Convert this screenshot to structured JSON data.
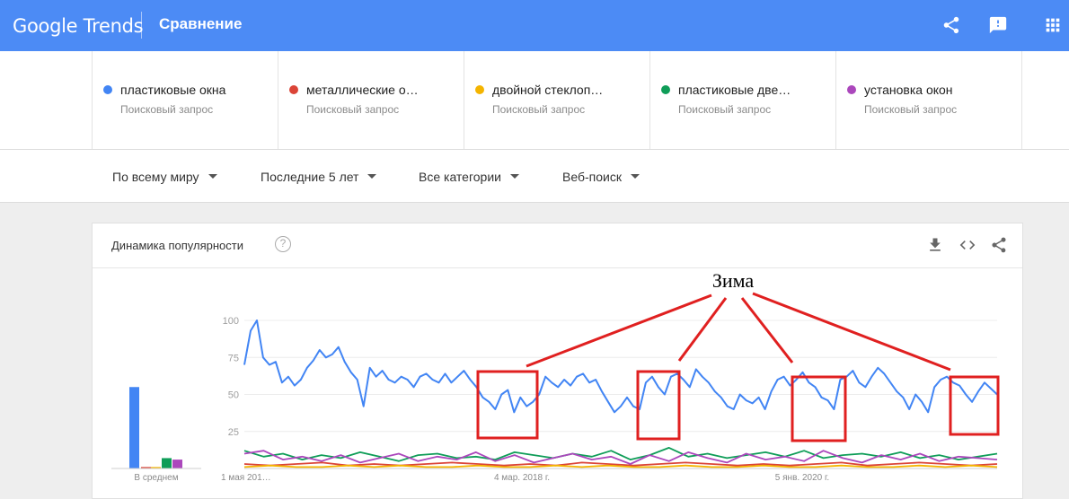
{
  "app": {
    "logo": "Google Trends",
    "title": "Сравнение"
  },
  "colors": {
    "accent": "#4c8bf5",
    "blue": "#4285f4",
    "red": "#db4437",
    "yellow": "#f4b400",
    "green": "#0f9d58",
    "purple": "#ab47bc",
    "annotation": "#e02020"
  },
  "terms": [
    {
      "name": "пластиковые окна",
      "type": "Поисковый запрос",
      "color": "#4285f4"
    },
    {
      "name": "металлические о…",
      "type": "Поисковый запрос",
      "color": "#db4437"
    },
    {
      "name": "двойной стеклоп…",
      "type": "Поисковый запрос",
      "color": "#f4b400"
    },
    {
      "name": "пластиковые две…",
      "type": "Поисковый запрос",
      "color": "#0f9d58"
    },
    {
      "name": "установка окон",
      "type": "Поисковый запрос",
      "color": "#ab47bc"
    }
  ],
  "filters": {
    "region": "По всему миру",
    "period": "Последние 5 лет",
    "category": "Все категории",
    "search_type": "Веб-поиск"
  },
  "card": {
    "title": "Динамика популярности",
    "help": "?"
  },
  "annotation": {
    "label": "Зима"
  },
  "chart_data": {
    "type": "line",
    "y_ticks": [
      "100",
      "75",
      "50",
      "25"
    ],
    "ylim": [
      0,
      100
    ],
    "x_ticks": [
      "1 мая 201…",
      "4 мар. 2018 г.",
      "5 янв. 2020 г."
    ],
    "average_label": "В среднем",
    "averages": [
      {
        "color": "#4285f4",
        "value": 55
      },
      {
        "color": "#db4437",
        "value": 1
      },
      {
        "color": "#f4b400",
        "value": 1
      },
      {
        "color": "#0f9d58",
        "value": 7
      },
      {
        "color": "#ab47bc",
        "value": 6
      }
    ],
    "series": [
      {
        "color": "#4285f4",
        "anchors": [
          70,
          93,
          100,
          75,
          70,
          72,
          58,
          62,
          56,
          60,
          68,
          73,
          80,
          75,
          77,
          82,
          72,
          65,
          60,
          42,
          68,
          62,
          66,
          60,
          58,
          62,
          60,
          55,
          62,
          64,
          60,
          58,
          64,
          58,
          62,
          66,
          60,
          55,
          48,
          45,
          40,
          50,
          53,
          38,
          48,
          42,
          45,
          50,
          62,
          58,
          55,
          60,
          56,
          62,
          64,
          58,
          60,
          52,
          45,
          38,
          42,
          48,
          42,
          40,
          58,
          62,
          55,
          50,
          62,
          64,
          60,
          55,
          67,
          62,
          58,
          52,
          48,
          42,
          40,
          50,
          46,
          44,
          48,
          40,
          52,
          60,
          62,
          56,
          60,
          65,
          58,
          55,
          48,
          46,
          40,
          60,
          62,
          66,
          58,
          55,
          62,
          68,
          64,
          58,
          52,
          48,
          40,
          50,
          45,
          38,
          55,
          60,
          62,
          58,
          56,
          50,
          45,
          52,
          58,
          54,
          50
        ]
      },
      {
        "color": "#db4437",
        "anchors": [
          3,
          2,
          3,
          4,
          2,
          3,
          2,
          3,
          4,
          3,
          2,
          3,
          2,
          4,
          3,
          2,
          3,
          4,
          3,
          2,
          3,
          2,
          3,
          4,
          2,
          3,
          4,
          3,
          2,
          3
        ]
      },
      {
        "color": "#f4b400",
        "anchors": [
          1,
          2,
          1,
          1,
          2,
          1,
          2,
          1,
          1,
          2,
          1,
          1,
          2,
          1,
          2,
          1,
          1,
          2,
          1,
          1,
          2,
          1,
          1,
          2,
          1,
          1,
          2,
          1,
          2,
          1
        ]
      },
      {
        "color": "#0f9d58",
        "anchors": [
          12,
          8,
          10,
          6,
          9,
          7,
          11,
          8,
          5,
          9,
          10,
          7,
          8,
          6,
          11,
          9,
          7,
          10,
          8,
          12,
          6,
          9,
          14,
          8,
          10,
          7,
          9,
          11,
          8,
          12,
          7,
          9,
          10,
          8,
          11,
          7,
          9,
          6,
          8,
          10
        ]
      },
      {
        "color": "#ab47bc",
        "anchors": [
          10,
          12,
          6,
          8,
          5,
          9,
          4,
          7,
          10,
          5,
          8,
          6,
          11,
          5,
          9,
          4,
          7,
          10,
          6,
          8,
          3,
          9,
          5,
          11,
          7,
          4,
          10,
          6,
          8,
          5,
          12,
          7,
          4,
          9,
          6,
          10,
          5,
          8,
          7,
          6
        ]
      }
    ]
  }
}
